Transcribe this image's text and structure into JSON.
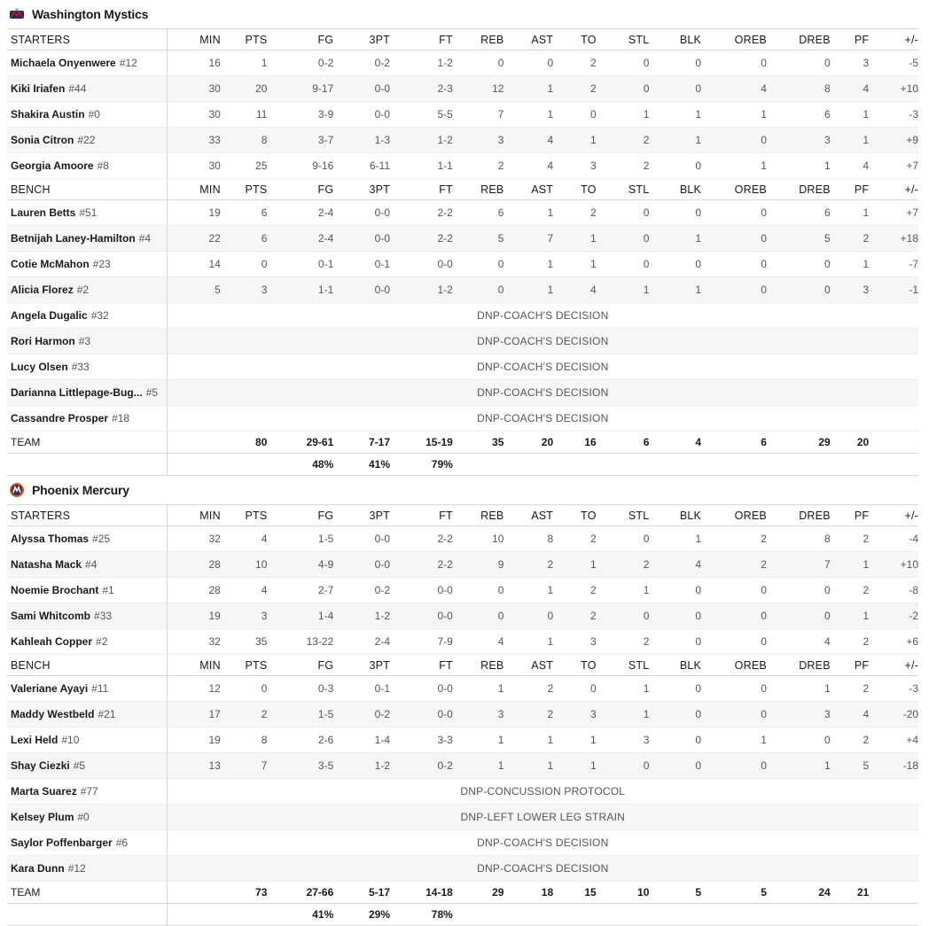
{
  "columns": [
    "MIN",
    "PTS",
    "FG",
    "3PT",
    "FT",
    "REB",
    "AST",
    "TO",
    "STL",
    "BLK",
    "OREB",
    "DREB",
    "PF",
    "+/-"
  ],
  "teams": [
    {
      "name": "Washington Mystics",
      "logo": "mystics-logo",
      "accent": "#1f2a5a",
      "starters_label": "STARTERS",
      "bench_label": "BENCH",
      "team_label": "TEAM",
      "starters": [
        {
          "name": "Michaela Onyenwere",
          "num": "#12",
          "stats": [
            "16",
            "1",
            "0-2",
            "0-2",
            "1-2",
            "0",
            "0",
            "2",
            "0",
            "0",
            "0",
            "0",
            "3",
            "-5"
          ]
        },
        {
          "name": "Kiki Iriafen",
          "num": "#44",
          "stats": [
            "30",
            "20",
            "9-17",
            "0-0",
            "2-3",
            "12",
            "1",
            "2",
            "0",
            "0",
            "4",
            "8",
            "4",
            "+10"
          ]
        },
        {
          "name": "Shakira Austin",
          "num": "#0",
          "stats": [
            "30",
            "11",
            "3-9",
            "0-0",
            "5-5",
            "7",
            "1",
            "0",
            "1",
            "1",
            "1",
            "6",
            "1",
            "-3"
          ]
        },
        {
          "name": "Sonia Citron",
          "num": "#22",
          "stats": [
            "33",
            "8",
            "3-7",
            "1-3",
            "1-2",
            "3",
            "4",
            "1",
            "2",
            "1",
            "0",
            "3",
            "1",
            "+9"
          ]
        },
        {
          "name": "Georgia Amoore",
          "num": "#8",
          "stats": [
            "30",
            "25",
            "9-16",
            "6-11",
            "1-1",
            "2",
            "4",
            "3",
            "2",
            "0",
            "1",
            "1",
            "4",
            "+7"
          ]
        }
      ],
      "bench": [
        {
          "name": "Lauren Betts",
          "num": "#51",
          "stats": [
            "19",
            "6",
            "2-4",
            "0-0",
            "2-2",
            "6",
            "1",
            "2",
            "0",
            "0",
            "0",
            "6",
            "1",
            "+7"
          ]
        },
        {
          "name": "Betnijah Laney-Hamilton",
          "num": "#4",
          "stats": [
            "22",
            "6",
            "2-4",
            "0-0",
            "2-2",
            "5",
            "7",
            "1",
            "0",
            "1",
            "0",
            "5",
            "2",
            "+18"
          ]
        },
        {
          "name": "Cotie McMahon",
          "num": "#23",
          "stats": [
            "14",
            "0",
            "0-1",
            "0-1",
            "0-0",
            "0",
            "1",
            "1",
            "0",
            "0",
            "0",
            "0",
            "1",
            "-7"
          ]
        },
        {
          "name": "Alicia Florez",
          "num": "#2",
          "stats": [
            "5",
            "3",
            "1-1",
            "0-0",
            "1-2",
            "0",
            "1",
            "4",
            "1",
            "1",
            "0",
            "0",
            "3",
            "-1"
          ]
        },
        {
          "name": "Angela Dugalic",
          "num": "#32",
          "dnp": "DNP-COACH'S DECISION"
        },
        {
          "name": "Rori Harmon",
          "num": "#3",
          "dnp": "DNP-COACH'S DECISION"
        },
        {
          "name": "Lucy Olsen",
          "num": "#33",
          "dnp": "DNP-COACH'S DECISION"
        },
        {
          "name": "Darianna Littlepage-Bug...",
          "num": "#5",
          "dnp": "DNP-COACH'S DECISION"
        },
        {
          "name": "Cassandre Prosper",
          "num": "#18",
          "dnp": "DNP-COACH'S DECISION"
        }
      ],
      "totals": [
        "",
        "80",
        "29-61",
        "7-17",
        "15-19",
        "35",
        "20",
        "16",
        "6",
        "4",
        "6",
        "29",
        "20",
        ""
      ],
      "pcts": [
        "",
        "",
        "48%",
        "41%",
        "79%",
        "",
        "",
        "",
        "",
        "",
        "",
        "",
        "",
        ""
      ]
    },
    {
      "name": "Phoenix Mercury",
      "logo": "mercury-logo",
      "accent": "#cb6015",
      "starters_label": "STARTERS",
      "bench_label": "BENCH",
      "team_label": "TEAM",
      "starters": [
        {
          "name": "Alyssa Thomas",
          "num": "#25",
          "stats": [
            "32",
            "4",
            "1-5",
            "0-0",
            "2-2",
            "10",
            "8",
            "2",
            "0",
            "1",
            "2",
            "8",
            "2",
            "-4"
          ]
        },
        {
          "name": "Natasha Mack",
          "num": "#4",
          "stats": [
            "28",
            "10",
            "4-9",
            "0-0",
            "2-2",
            "9",
            "2",
            "1",
            "2",
            "4",
            "2",
            "7",
            "1",
            "+10"
          ]
        },
        {
          "name": "Noemie Brochant",
          "num": "#1",
          "stats": [
            "28",
            "4",
            "2-7",
            "0-2",
            "0-0",
            "0",
            "1",
            "2",
            "1",
            "0",
            "0",
            "0",
            "2",
            "-8"
          ]
        },
        {
          "name": "Sami Whitcomb",
          "num": "#33",
          "stats": [
            "19",
            "3",
            "1-4",
            "1-2",
            "0-0",
            "0",
            "0",
            "2",
            "0",
            "0",
            "0",
            "0",
            "1",
            "-2"
          ]
        },
        {
          "name": "Kahleah Copper",
          "num": "#2",
          "stats": [
            "32",
            "35",
            "13-22",
            "2-4",
            "7-9",
            "4",
            "1",
            "3",
            "2",
            "0",
            "0",
            "4",
            "2",
            "+6"
          ]
        }
      ],
      "bench": [
        {
          "name": "Valeriane Ayayi",
          "num": "#11",
          "stats": [
            "12",
            "0",
            "0-3",
            "0-1",
            "0-0",
            "1",
            "2",
            "0",
            "1",
            "0",
            "0",
            "1",
            "2",
            "-3"
          ]
        },
        {
          "name": "Maddy Westbeld",
          "num": "#21",
          "stats": [
            "17",
            "2",
            "1-5",
            "0-2",
            "0-0",
            "3",
            "2",
            "3",
            "1",
            "0",
            "0",
            "3",
            "4",
            "-20"
          ]
        },
        {
          "name": "Lexi Held",
          "num": "#10",
          "stats": [
            "19",
            "8",
            "2-6",
            "1-4",
            "3-3",
            "1",
            "1",
            "1",
            "3",
            "0",
            "1",
            "0",
            "2",
            "+4"
          ]
        },
        {
          "name": "Shay Ciezki",
          "num": "#5",
          "stats": [
            "13",
            "7",
            "3-5",
            "1-2",
            "0-2",
            "1",
            "1",
            "1",
            "0",
            "0",
            "0",
            "1",
            "5",
            "-18"
          ]
        },
        {
          "name": "Marta Suarez",
          "num": "#77",
          "dnp": "DNP-CONCUSSION PROTOCOL"
        },
        {
          "name": "Kelsey Plum",
          "num": "#0",
          "dnp": "DNP-LEFT LOWER LEG STRAIN"
        },
        {
          "name": "Saylor Poffenbarger",
          "num": "#6",
          "dnp": "DNP-COACH'S DECISION"
        },
        {
          "name": "Kara Dunn",
          "num": "#12",
          "dnp": "DNP-COACH'S DECISION"
        }
      ],
      "totals": [
        "",
        "73",
        "27-66",
        "5-17",
        "14-18",
        "29",
        "18",
        "15",
        "10",
        "5",
        "5",
        "24",
        "21",
        ""
      ],
      "pcts": [
        "",
        "",
        "41%",
        "29%",
        "78%",
        "",
        "",
        "",
        "",
        "",
        "",
        "",
        "",
        ""
      ]
    }
  ]
}
